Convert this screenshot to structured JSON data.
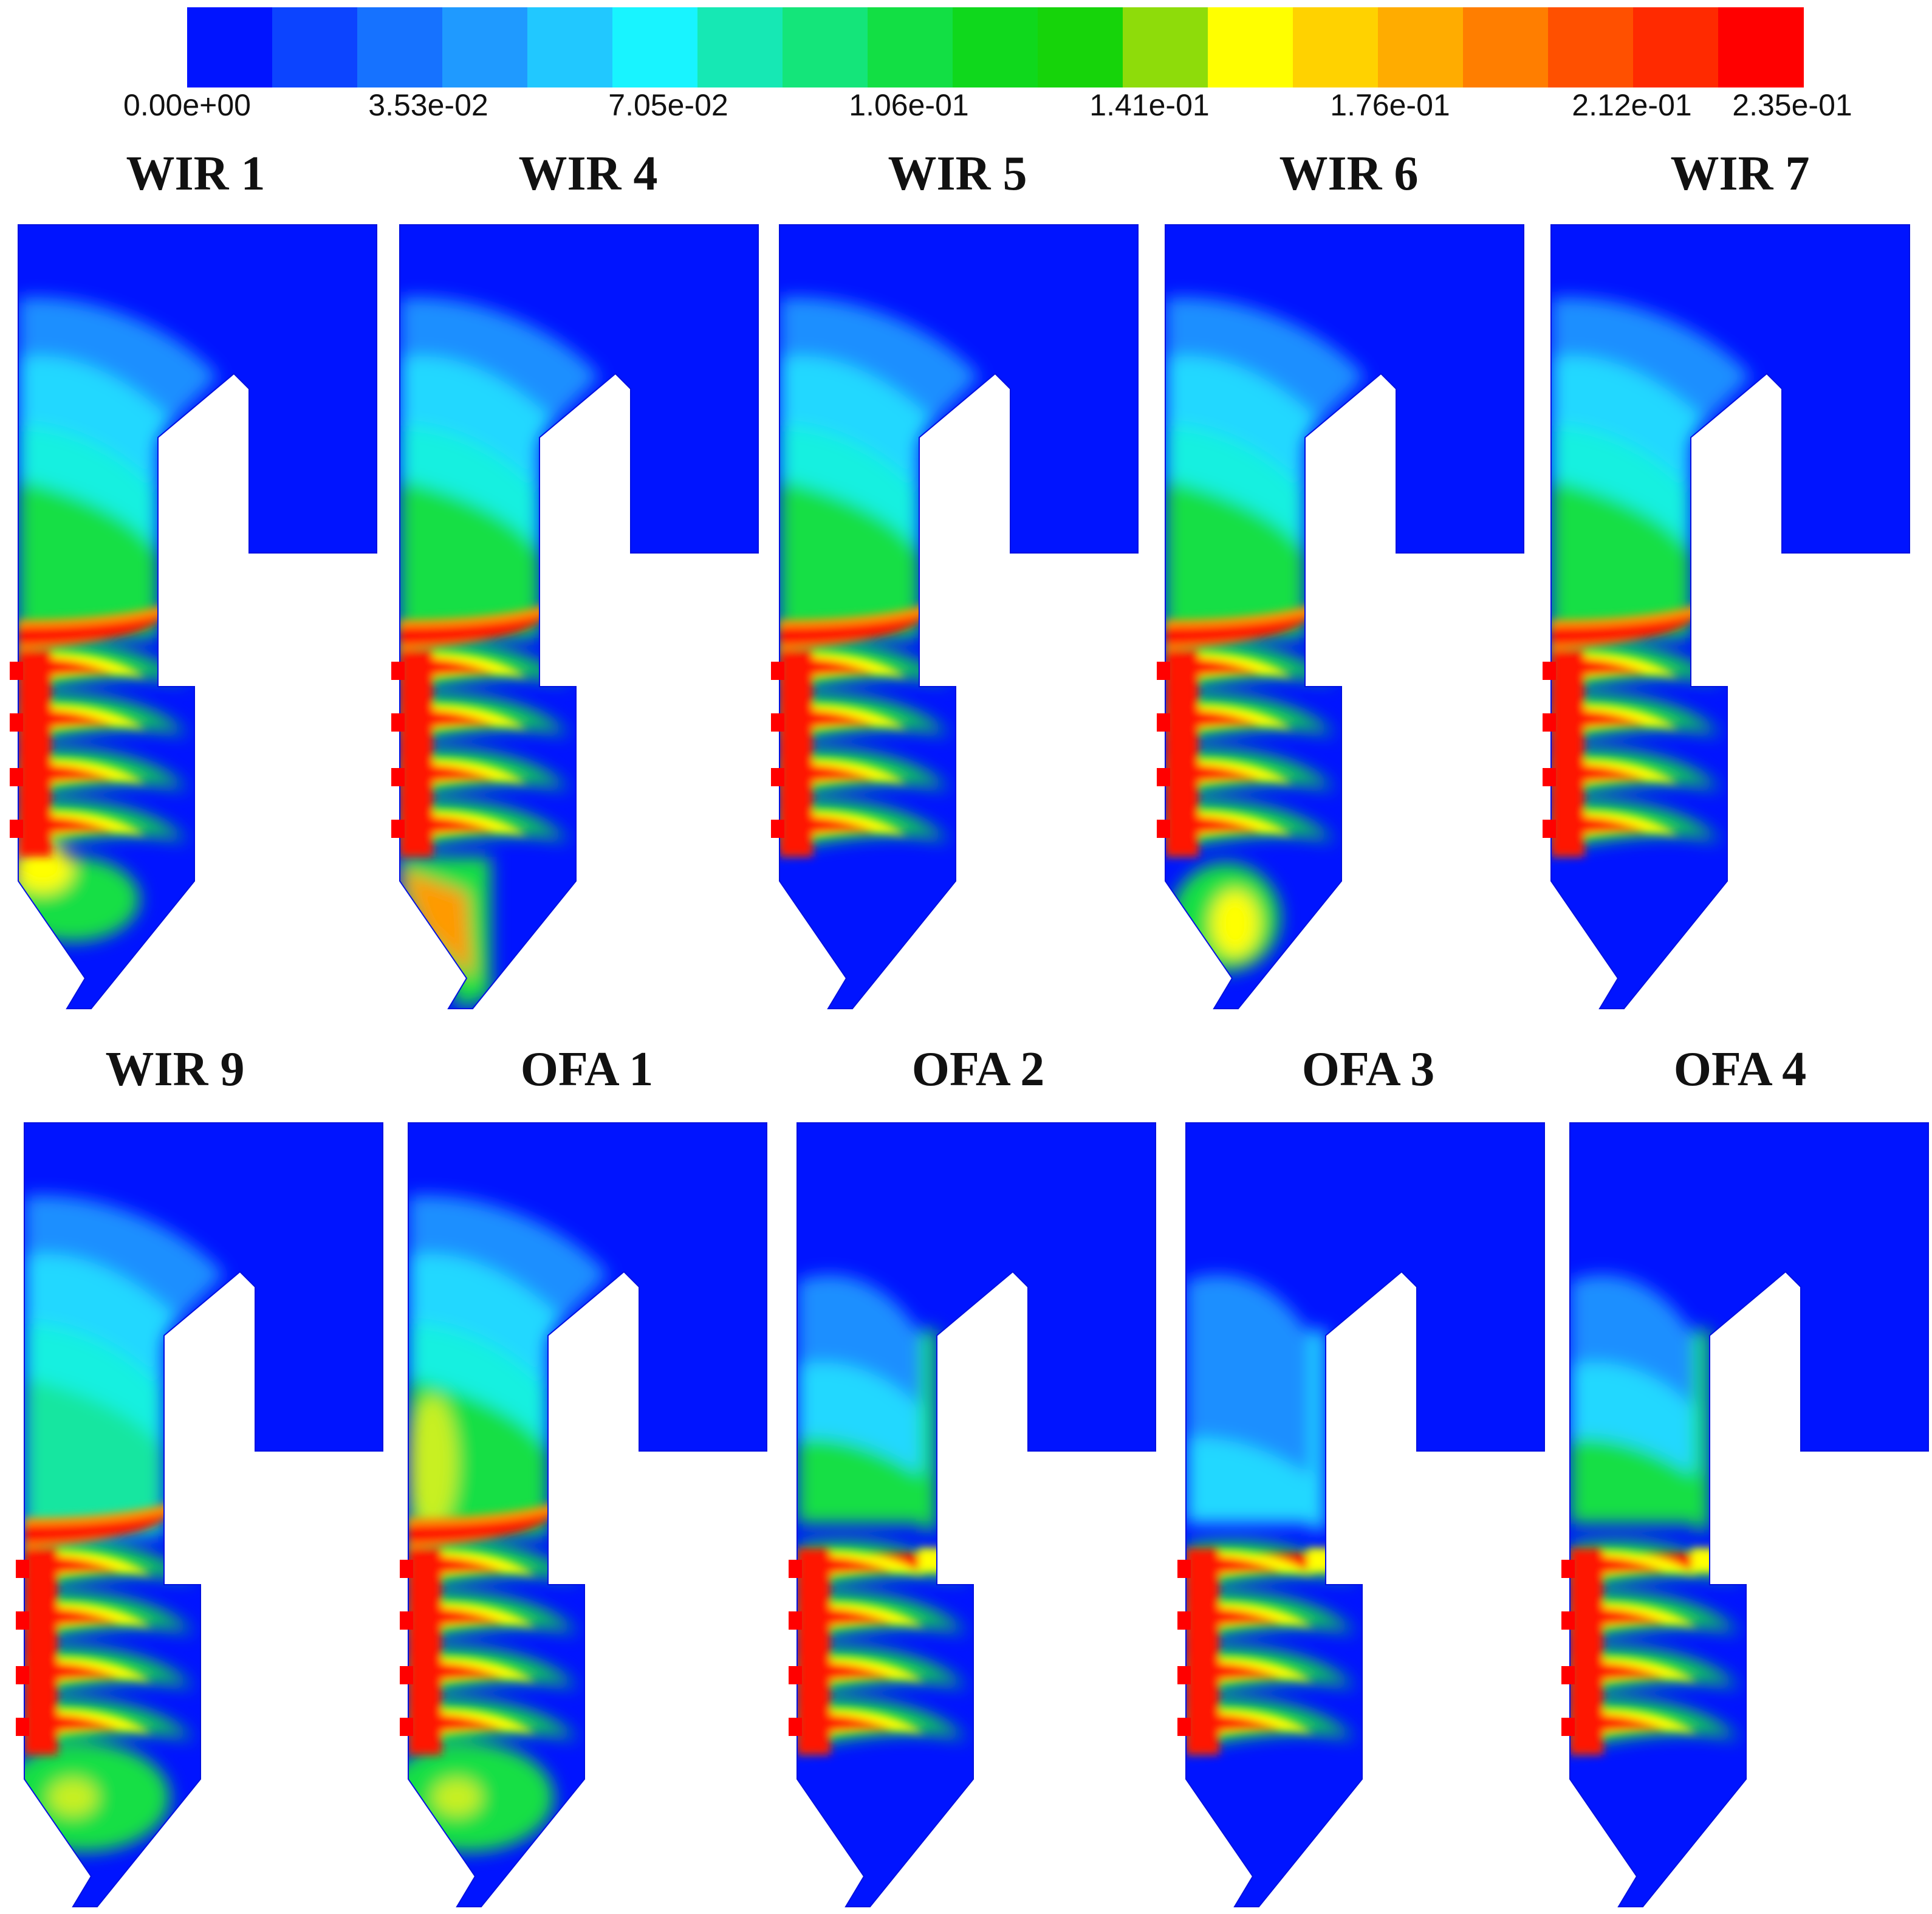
{
  "colorbar": {
    "colors": [
      "#0014ff",
      "#0c44ff",
      "#1672ff",
      "#1f9aff",
      "#21c8ff",
      "#18f4ff",
      "#16e8b4",
      "#14e57a",
      "#12df44",
      "#0fd81c",
      "#16d40a",
      "#8edc0a",
      "#ffff00",
      "#ffd200",
      "#ffac00",
      "#ff7e00",
      "#ff5000",
      "#ff2a00",
      "#ff0000"
    ],
    "tick_labels": [
      "0.00e+00",
      "3.53e-02",
      "7.05e-02",
      "1.06e-01",
      "1.41e-01",
      "1.76e-01",
      "2.12e-01",
      "2.35e-01"
    ]
  },
  "panels": [
    {
      "title": "WIR 1",
      "bottom": "hot",
      "mid": "green",
      "burners": 4
    },
    {
      "title": "WIR 4",
      "bottom": "hot-corner",
      "mid": "green",
      "burners": 4
    },
    {
      "title": "WIR 5",
      "bottom": "cold",
      "mid": "green",
      "burners": 4
    },
    {
      "title": "WIR 6",
      "bottom": "yellow-spot",
      "mid": "green",
      "burners": 4
    },
    {
      "title": "WIR 7",
      "bottom": "cold",
      "mid": "green",
      "burners": 4
    },
    {
      "title": "WIR 9",
      "bottom": "green",
      "mid": "cyan",
      "burners": 4
    },
    {
      "title": "OFA 1",
      "bottom": "green",
      "mid": "green-yellow",
      "burners": 4
    },
    {
      "title": "OFA 2",
      "bottom": "cold",
      "mid": "cyan-ofa",
      "burners": 4
    },
    {
      "title": "OFA 3",
      "bottom": "cold",
      "mid": "blue-ofa",
      "burners": 4
    },
    {
      "title": "OFA 4",
      "bottom": "cold",
      "mid": "cyan-ofa",
      "burners": 4
    }
  ]
}
